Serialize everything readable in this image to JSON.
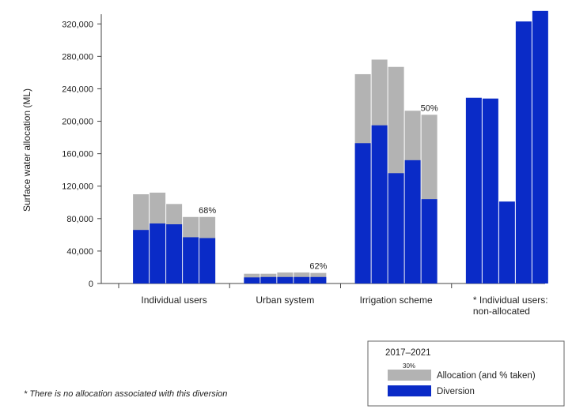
{
  "chart_data": {
    "type": "bar",
    "ylabel": "Surface water allocation (ML)",
    "xlabel": "",
    "ylim": [
      0,
      330000
    ],
    "yticks": [
      0,
      40000,
      80000,
      120000,
      160000,
      200000,
      240000,
      280000,
      320000
    ],
    "ytick_labels": [
      "0",
      "40,000",
      "80,000",
      "120,000",
      "160,000",
      "200,000",
      "240,000",
      "280,000",
      "320,000"
    ],
    "categories": [
      "Individual users",
      "Urban system",
      "Irrigation scheme",
      "* Individual users: non-allocated"
    ],
    "category_label_lines": [
      [
        "Individual users"
      ],
      [
        "Urban system"
      ],
      [
        "Irrigation scheme"
      ],
      [
        "* Individual users:",
        "non-allocated"
      ]
    ],
    "groups": [
      {
        "category": "Individual users",
        "allocation": [
          110000,
          112000,
          98000,
          82000,
          82000
        ],
        "diversion": [
          66000,
          74000,
          73000,
          57000,
          56000
        ],
        "pct_label": "68%"
      },
      {
        "category": "Urban system",
        "allocation": [
          12000,
          12000,
          13500,
          13500,
          13000
        ],
        "diversion": [
          7500,
          8000,
          8000,
          8000,
          8000
        ],
        "pct_label": "62%"
      },
      {
        "category": "Irrigation scheme",
        "allocation": [
          258000,
          276000,
          267000,
          213000,
          208000
        ],
        "diversion": [
          173000,
          195000,
          136000,
          152000,
          104000
        ],
        "pct_label": "50%"
      },
      {
        "category": "* Individual users: non-allocated",
        "allocation": [
          null,
          null,
          null,
          null,
          null
        ],
        "diversion": [
          229000,
          228000,
          101000,
          323000,
          336000
        ],
        "pct_label": ""
      }
    ],
    "series": [
      {
        "name": "Allocation (and % taken)",
        "color": "#b3b3b3"
      },
      {
        "name": "Diversion",
        "color": "#0a2bc7"
      }
    ],
    "legend": {
      "title": "2017–2021",
      "sample_pct": "30%",
      "items": [
        "Allocation (and % taken)",
        "Diversion"
      ],
      "placement": "bottom-right"
    },
    "grid": false,
    "footnote": "* There is no allocation associated with this diversion"
  }
}
